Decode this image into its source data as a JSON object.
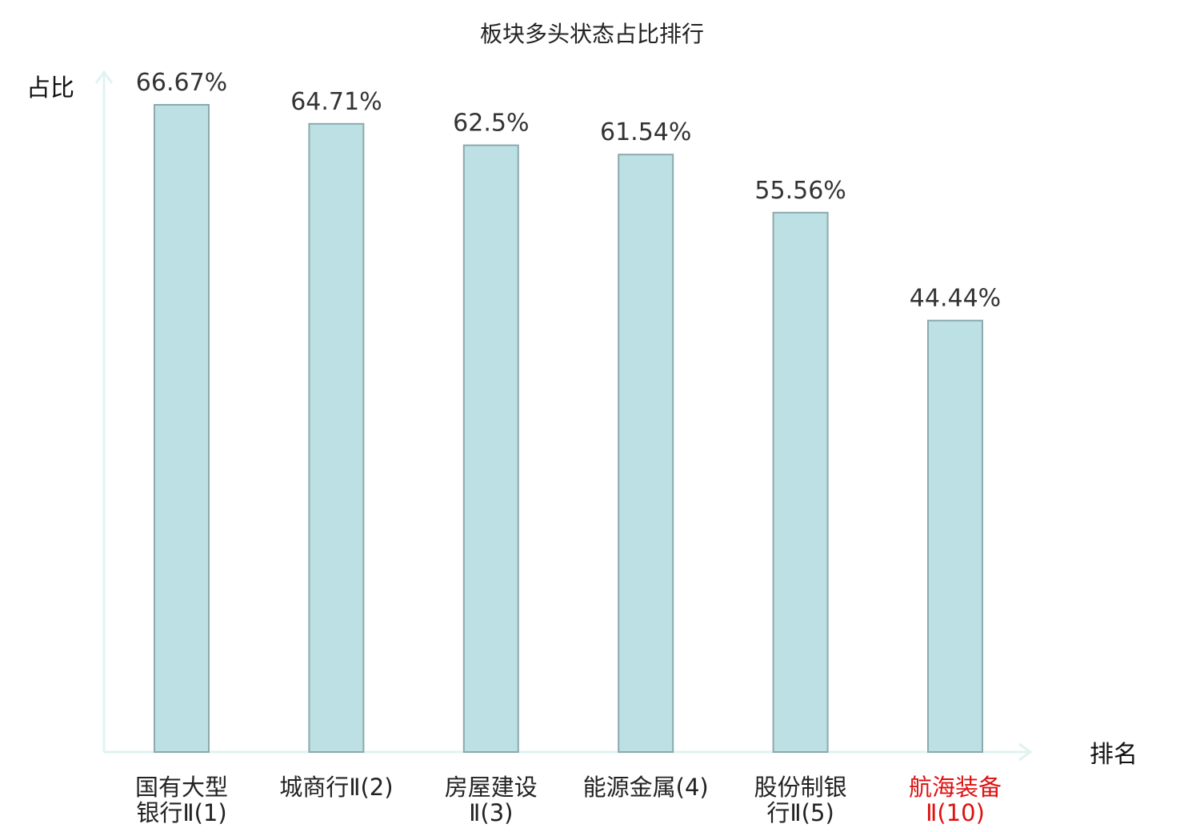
{
  "chart_data": {
    "type": "bar",
    "title": "板块多头状态占比排行",
    "xlabel": "排名",
    "ylabel": "占比",
    "categories": [
      [
        "国有大型",
        "银行Ⅱ(1)"
      ],
      [
        "城商行Ⅱ(2)"
      ],
      [
        "房屋建设",
        "Ⅱ(3)"
      ],
      [
        "能源金属(4)"
      ],
      [
        "股份制银",
        "行Ⅱ(5)"
      ],
      [
        "航海装备",
        "Ⅱ(10)"
      ]
    ],
    "values": [
      66.67,
      64.71,
      62.5,
      61.54,
      55.56,
      44.44
    ],
    "value_labels": [
      "66.67%",
      "64.71%",
      "62.5%",
      "61.54%",
      "55.56%",
      "44.44%"
    ],
    "highlight_index": 5,
    "ylim": [
      0,
      66.67
    ],
    "grid": false,
    "legend": "none",
    "colors": {
      "bar_fill": "#bce0e3",
      "bar_stroke": "#8aaaad",
      "axis": "#e0f3f1",
      "label": "#222222",
      "highlight": "#dd1111"
    }
  }
}
